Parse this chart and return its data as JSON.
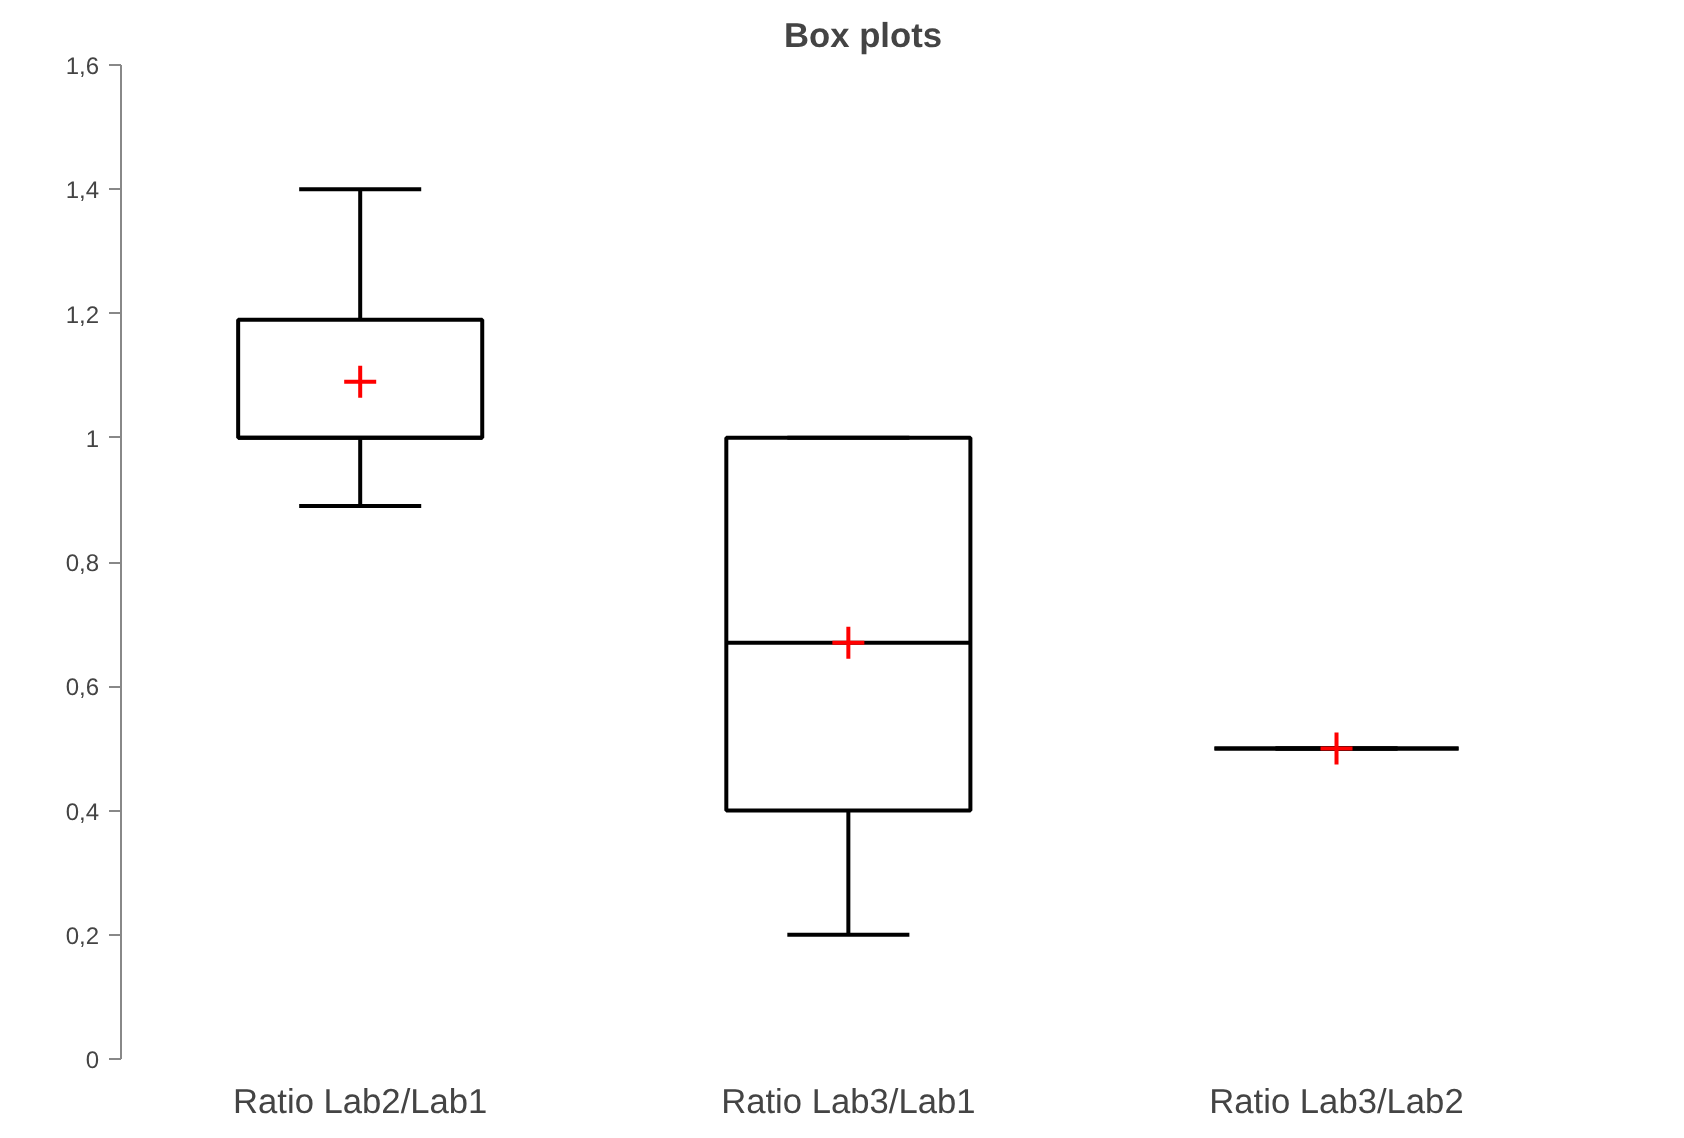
{
  "chart_data": {
    "type": "box",
    "title": "Box plots",
    "categories": [
      "Ratio Lab2/Lab1",
      "Ratio Lab3/Lab1",
      "Ratio Lab3/Lab2"
    ],
    "boxes": [
      {
        "low": 0.89,
        "q1": 1.0,
        "median": 1.0,
        "q3": 1.19,
        "high": 1.4,
        "mean": 1.09
      },
      {
        "low": 0.2,
        "q1": 0.4,
        "median": 0.67,
        "q3": 1.0,
        "high": 1.0,
        "mean": 0.67
      },
      {
        "low": 0.5,
        "q1": 0.5,
        "median": 0.5,
        "q3": 0.5,
        "high": 0.5,
        "mean": 0.5
      }
    ],
    "ylim": [
      0,
      1.6
    ],
    "yticks": [
      0,
      {
        "value": 0.2,
        "label": "0,2"
      },
      {
        "value": 0.4,
        "label": "0,4"
      },
      {
        "value": 0.6,
        "label": "0,6"
      },
      {
        "value": 0.8,
        "label": "0,8"
      },
      1,
      {
        "value": 1.2,
        "label": "1,2"
      },
      {
        "value": 1.4,
        "label": "1,4"
      },
      {
        "value": 1.6,
        "label": "1,6"
      }
    ],
    "grid": false
  }
}
